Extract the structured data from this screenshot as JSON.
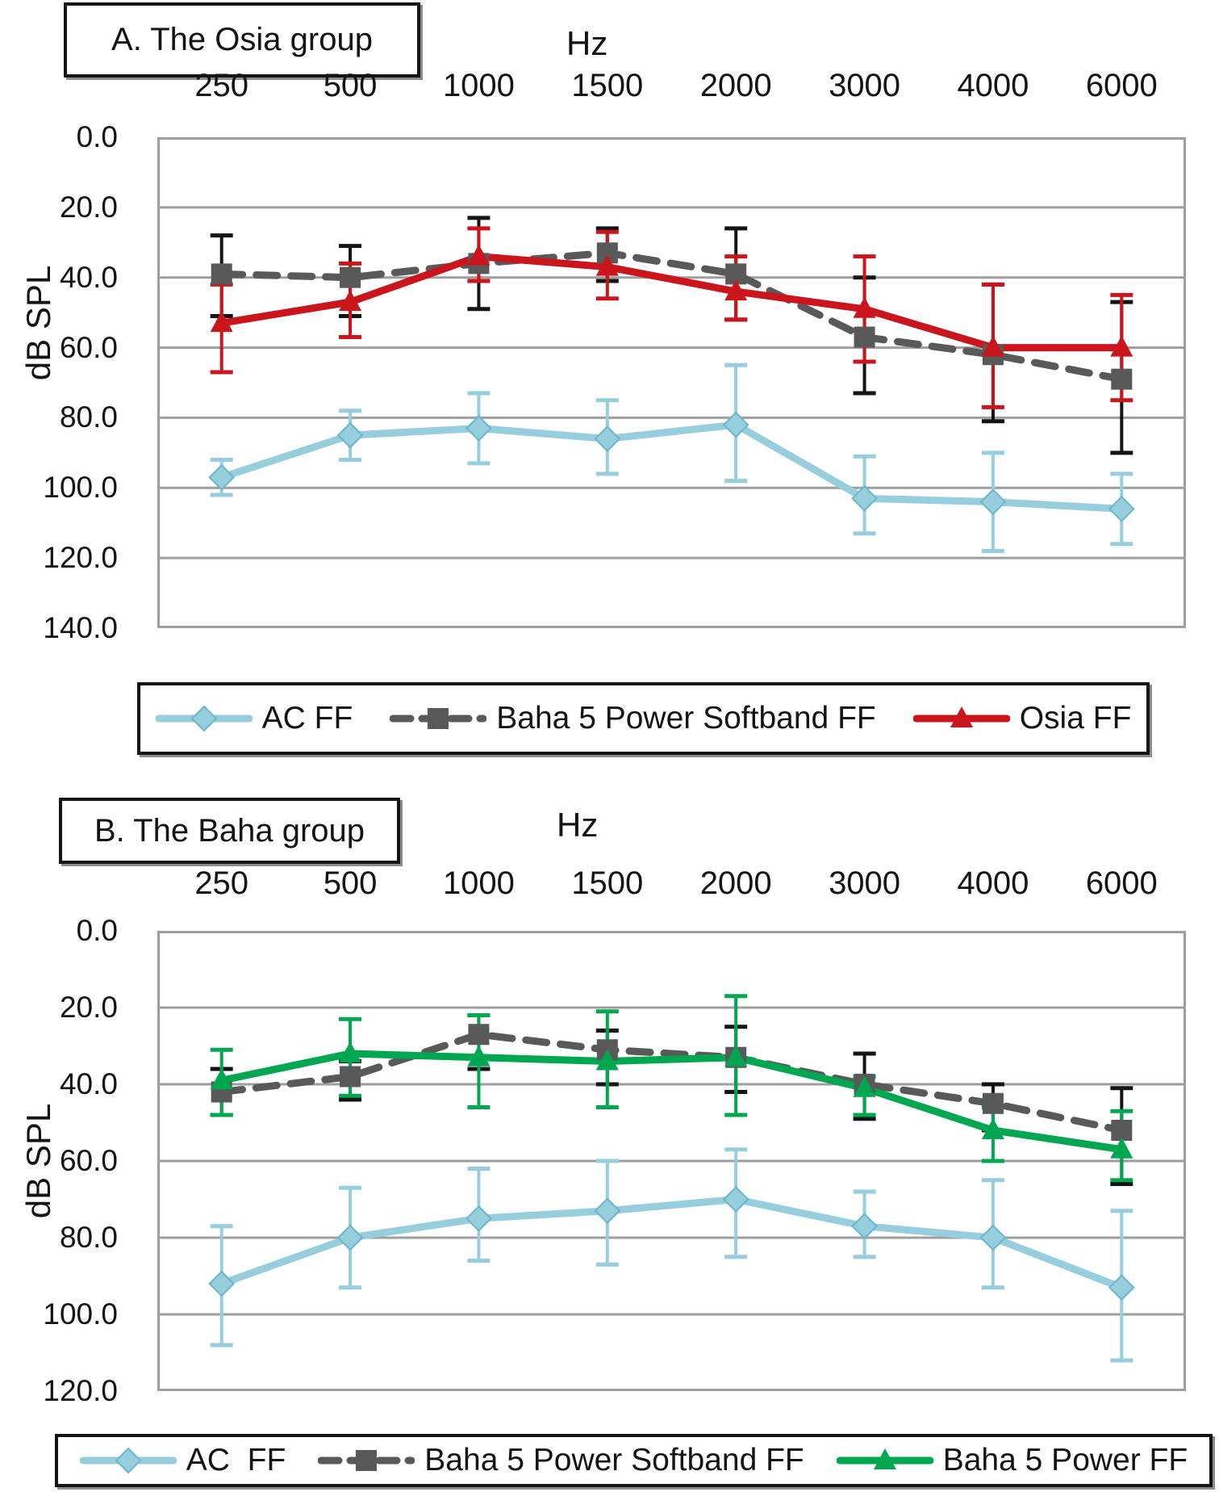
{
  "page": {
    "background": "#ffffff"
  },
  "colors": {
    "ac": "#96cedd",
    "ac_stroke": "#6ab6ca",
    "softband": "#595959",
    "osia": "#c9151b",
    "baha": "#00a650",
    "black": "#141414",
    "grid": "#9e9e9e",
    "text": "#141414"
  },
  "chart_data": [
    {
      "panel": "A",
      "type": "line",
      "title": "A. The Osia group",
      "x_unit_label": "Hz",
      "ylabel": "dB SPL",
      "categories": [
        "250",
        "500",
        "1000",
        "1500",
        "2000",
        "3000",
        "4000",
        "6000"
      ],
      "y_ticks": [
        "0.0",
        "20.0",
        "40.0",
        "60.0",
        "80.0",
        "100.0",
        "120.0",
        "140.0"
      ],
      "ylim": [
        0,
        140
      ],
      "y_inverted": true,
      "grid": true,
      "legend_position": "bottom",
      "series": [
        {
          "name": "AC FF",
          "legend_label": "AC FF",
          "marker": "diamond",
          "color_key": "ac",
          "error_color_key": "ac",
          "dash": false,
          "values": [
            97,
            85,
            83,
            86,
            82,
            103,
            104,
            106
          ],
          "err_low": [
            92,
            78,
            73,
            75,
            65,
            91,
            90,
            96
          ],
          "err_high": [
            102,
            92,
            93,
            96,
            98,
            113,
            118,
            116
          ]
        },
        {
          "name": "Baha 5 Power Softband FF",
          "legend_label": "Baha 5 Power Softband FF",
          "marker": "square",
          "color_key": "softband",
          "error_color_key": "black",
          "dash": true,
          "values": [
            39,
            40,
            36,
            33,
            39,
            57,
            62,
            69
          ],
          "err_low": [
            28,
            31,
            23,
            26,
            26,
            40,
            42,
            47
          ],
          "err_high": [
            51,
            51,
            49,
            41,
            52,
            73,
            81,
            90
          ]
        },
        {
          "name": "Osia FF",
          "legend_label": "Osia FF",
          "marker": "triangle",
          "color_key": "osia",
          "error_color_key": "osia",
          "dash": false,
          "values": [
            53,
            47,
            34,
            37,
            44,
            49,
            60,
            60
          ],
          "err_low": [
            42,
            36,
            26,
            27,
            34,
            34,
            42,
            45
          ],
          "err_high": [
            67,
            57,
            41,
            46,
            52,
            64,
            77,
            75
          ]
        }
      ]
    },
    {
      "panel": "B",
      "type": "line",
      "title": "B. The Baha group",
      "x_unit_label": "Hz",
      "ylabel": "dB SPL",
      "categories": [
        "250",
        "500",
        "1000",
        "1500",
        "2000",
        "3000",
        "4000",
        "6000"
      ],
      "y_ticks": [
        "0.0",
        "20.0",
        "40.0",
        "60.0",
        "80.0",
        "100.0",
        "120.0"
      ],
      "ylim": [
        0,
        120
      ],
      "y_inverted": true,
      "grid": true,
      "legend_position": "bottom",
      "series": [
        {
          "name": "AC FF",
          "legend_label": "AC  FF",
          "marker": "diamond",
          "color_key": "ac",
          "error_color_key": "ac",
          "dash": false,
          "values": [
            92,
            80,
            75,
            73,
            70,
            77,
            80,
            93
          ],
          "err_low": [
            77,
            67,
            62,
            60,
            57,
            68,
            65,
            73
          ],
          "err_high": [
            108,
            93,
            86,
            87,
            85,
            85,
            93,
            112
          ]
        },
        {
          "name": "Baha 5 Power Softband FF",
          "legend_label": "Baha 5 Power Softband FF",
          "marker": "square",
          "color_key": "softband",
          "error_color_key": "black",
          "dash": true,
          "values": [
            42,
            38,
            27,
            31,
            33,
            40,
            45,
            52
          ],
          "err_low": [
            36,
            34,
            22,
            26,
            25,
            32,
            40,
            41
          ],
          "err_high": [
            48,
            44,
            36,
            40,
            42,
            49,
            52,
            66
          ]
        },
        {
          "name": "Baha 5 Power FF",
          "legend_label": "Baha 5 Power FF",
          "marker": "triangle",
          "color_key": "baha",
          "error_color_key": "baha",
          "dash": false,
          "values": [
            39,
            32,
            33,
            34,
            33,
            41,
            52,
            57
          ],
          "err_low": [
            31,
            23,
            22,
            21,
            17,
            38,
            46,
            47
          ],
          "err_high": [
            48,
            43,
            46,
            46,
            48,
            48,
            60,
            65
          ]
        }
      ]
    }
  ]
}
